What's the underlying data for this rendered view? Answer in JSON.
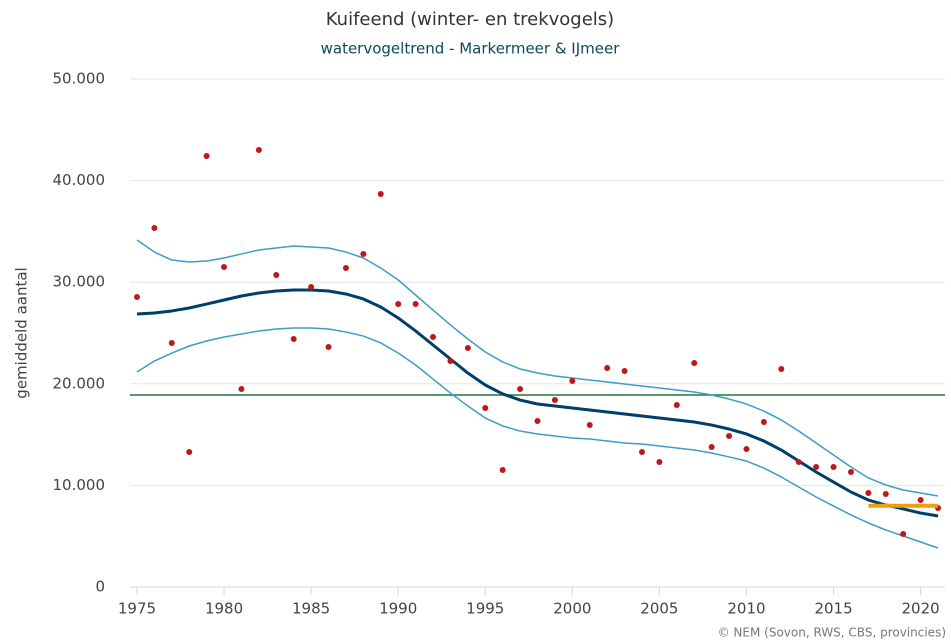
{
  "chart_data": {
    "type": "line",
    "title": "Kuifeend (winter- en trekvogels)",
    "subtitle": "watervogeltrend - Markermeer & IJmeer",
    "y_label": "gemiddeld aantal",
    "credit": "© NEM (Sovon, RWS, CBS, provincies)",
    "x": [
      1975,
      1976,
      1977,
      1978,
      1979,
      1980,
      1981,
      1982,
      1983,
      1984,
      1985,
      1986,
      1987,
      1988,
      1989,
      1990,
      1991,
      1992,
      1993,
      1994,
      1995,
      1996,
      1997,
      1998,
      1999,
      2000,
      2001,
      2002,
      2003,
      2004,
      2005,
      2006,
      2007,
      2008,
      2009,
      2010,
      2011,
      2012,
      2013,
      2014,
      2015,
      2016,
      2017,
      2018,
      2019,
      2020,
      2021
    ],
    "xlim": [
      1974.6,
      2021.4
    ],
    "xticks": [
      1975,
      1980,
      1985,
      1990,
      1995,
      2000,
      2005,
      2010,
      2015,
      2020
    ],
    "ylim": [
      0,
      50000
    ],
    "yticks": [
      0,
      {
        "value": 10000,
        "label": "10.000"
      },
      {
        "value": 20000,
        "label": "20.000"
      },
      {
        "value": 30000,
        "label": "30.000"
      },
      {
        "value": 40000,
        "label": "40.000"
      },
      {
        "value": 50000,
        "label": "50.000"
      }
    ],
    "grid": true,
    "reference_line": {
      "value": 18900,
      "color": "#1d7a3c"
    },
    "series": [
      {
        "mode": "line",
        "color": "#3d9dc3",
        "width": 1.5,
        "values": [
          34150,
          32970,
          32180,
          31990,
          32090,
          32380,
          32780,
          33170,
          33370,
          33560,
          33460,
          33370,
          32970,
          32380,
          31400,
          30220,
          28740,
          27260,
          25790,
          24410,
          23130,
          22150,
          21460,
          21060,
          20770,
          20570,
          20370,
          20180,
          19980,
          19780,
          19590,
          19390,
          19190,
          18900,
          18500,
          18010,
          17320,
          16440,
          15350,
          14170,
          12990,
          11810,
          10730,
          10040,
          9550,
          9250,
          8960
        ]
      },
      {
        "mode": "line",
        "color": "#3d9dc3",
        "width": 1.5,
        "values": [
          21160,
          22240,
          23030,
          23720,
          24210,
          24610,
          24900,
          25200,
          25390,
          25490,
          25490,
          25390,
          25100,
          24700,
          24020,
          23030,
          21850,
          20470,
          19090,
          17810,
          16630,
          15850,
          15350,
          15060,
          14860,
          14670,
          14570,
          14370,
          14170,
          14070,
          13880,
          13680,
          13480,
          13190,
          12800,
          12400,
          11710,
          10830,
          9840,
          8860,
          7970,
          7090,
          6300,
          5610,
          5020,
          4430,
          3840
        ]
      },
      {
        "mode": "line",
        "color": "#003e6b",
        "width": 3,
        "values": [
          26870,
          26970,
          27170,
          27460,
          27850,
          28250,
          28640,
          28940,
          29130,
          29230,
          29230,
          29130,
          28840,
          28350,
          27560,
          26480,
          25200,
          23820,
          22440,
          21060,
          19880,
          19000,
          18400,
          18010,
          17810,
          17620,
          17420,
          17220,
          17030,
          16830,
          16630,
          16440,
          16240,
          15940,
          15550,
          15060,
          14370,
          13480,
          12400,
          11320,
          10330,
          9350,
          8560,
          8070,
          7680,
          7280,
          6990
        ]
      },
      {
        "mode": "markers",
        "color": "#c0171b",
        "values": [
          28540,
          35330,
          24020,
          13290,
          42420,
          31500,
          19490,
          43010,
          30710,
          24410,
          29530,
          23620,
          31400,
          32780,
          38680,
          27850,
          27850,
          24610,
          22240,
          23520,
          17620,
          11520,
          19490,
          16340,
          18400,
          20280,
          15940,
          21560,
          21260,
          13290,
          12300,
          17910,
          22050,
          13780,
          14860,
          13580,
          16240,
          21460,
          12300,
          11810,
          11810,
          11320,
          9250,
          9150,
          5220,
          8560,
          7780
        ]
      },
      {
        "mode": "line",
        "color": "#f39c12",
        "width": 4,
        "x": [
          2017,
          2021
        ],
        "values": [
          8000,
          8000
        ]
      }
    ]
  }
}
